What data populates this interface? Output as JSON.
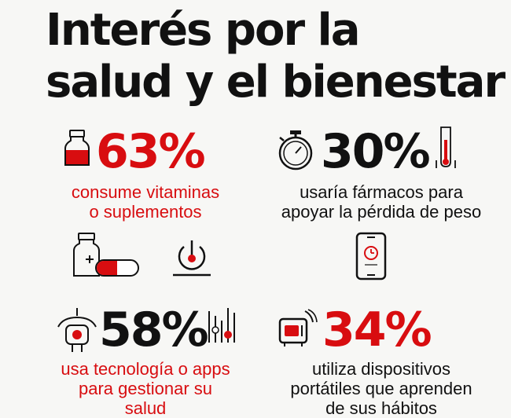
{
  "title": "Interés por la\nsalud y el bienestar",
  "stats": [
    {
      "value": "63%",
      "description": "consume vitaminas\no suplementos"
    },
    {
      "value": "30%",
      "description": "usaría fármacos para\napoyar la pérdida de peso"
    },
    {
      "value": "58%",
      "description": "usa tecnología o apps\npara gestionar su\nsalud"
    },
    {
      "value": "34%",
      "description": "utiliza dispositivos\nportátiles que aprenden\nde sus hábitos"
    }
  ],
  "colors": {
    "accent": "#d80d10",
    "text": "#111111",
    "background": "#f7f7f5"
  },
  "icons": [
    "medicine-bottle-icon",
    "stopwatch-icon",
    "thermometer-icon",
    "pill-bottle-and-capsule-icon",
    "power-button-icon",
    "smartphone-alarm-icon",
    "fitness-tracker-icon",
    "bar-chart-icon",
    "smart-speaker-icon"
  ]
}
